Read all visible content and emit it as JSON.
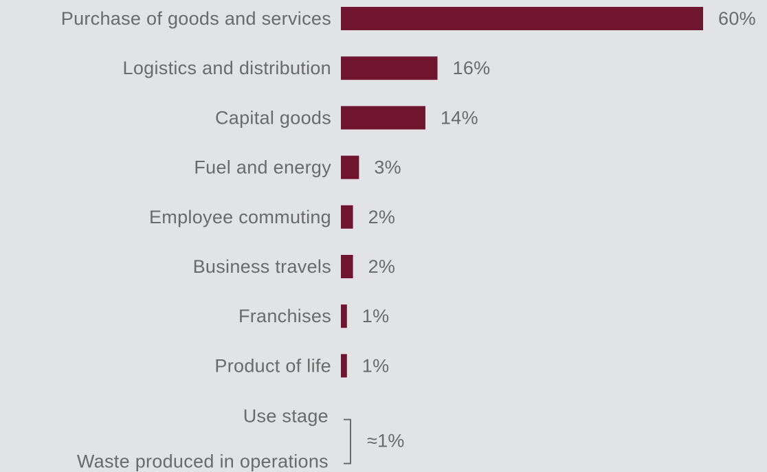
{
  "chart_data": {
    "type": "bar",
    "orientation": "horizontal",
    "title": "",
    "xlabel": "",
    "ylabel": "",
    "grid": false,
    "value_suffix": "%",
    "xlim": [
      0,
      60
    ],
    "categories": [
      "Purchase of goods and services",
      "Logistics and distribution",
      "Capital goods",
      "Fuel and energy",
      "Employee commuting",
      "Business travels",
      "Franchises",
      "Product of life"
    ],
    "values": [
      60,
      16,
      14,
      3,
      2,
      2,
      1,
      1
    ],
    "bar_color": "#6f1530",
    "grouped_note": {
      "categories": [
        "Use stage",
        "Waste produced in operations"
      ],
      "label": "≈1%"
    }
  },
  "colors": {
    "background": "#e2e3e5",
    "text": "#6a6a6a",
    "bar": "#6f1530",
    "bracket": "#6a6a6a"
  }
}
